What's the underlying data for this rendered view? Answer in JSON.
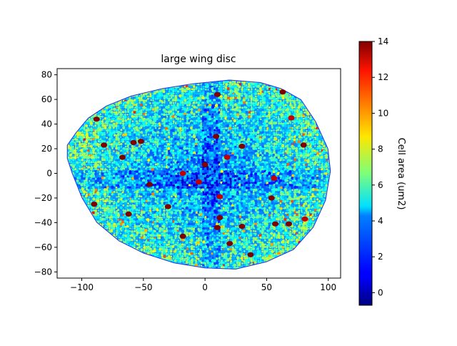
{
  "chart_data": {
    "type": "heatmap",
    "title": "large wing disc",
    "xlabel": "",
    "ylabel": "",
    "xlim": [
      -120,
      110
    ],
    "ylim": [
      -85,
      85
    ],
    "xticks": [
      -100,
      -50,
      0,
      50,
      100
    ],
    "yticks": [
      -80,
      -60,
      -40,
      -20,
      0,
      20,
      40,
      60,
      80
    ],
    "colorbar": {
      "label": "Cell area (um2)",
      "colormap": "jet",
      "range": [
        -0.7,
        14
      ],
      "ticks": [
        0,
        2,
        4,
        6,
        8,
        10,
        12,
        14
      ]
    },
    "grid": false,
    "tissue_outline": [
      [
        -112,
        23
      ],
      [
        -105,
        33
      ],
      [
        -95,
        45
      ],
      [
        -80,
        55
      ],
      [
        -60,
        63
      ],
      [
        -35,
        69
      ],
      [
        -10,
        73
      ],
      [
        20,
        76
      ],
      [
        45,
        74
      ],
      [
        62,
        69
      ],
      [
        78,
        60
      ],
      [
        90,
        42
      ],
      [
        100,
        20
      ],
      [
        102,
        2
      ],
      [
        98,
        -22
      ],
      [
        88,
        -44
      ],
      [
        72,
        -62
      ],
      [
        50,
        -72
      ],
      [
        25,
        -78
      ],
      [
        0,
        -77
      ],
      [
        -25,
        -73
      ],
      [
        -50,
        -65
      ],
      [
        -70,
        -55
      ],
      [
        -88,
        -40
      ],
      [
        -100,
        -20
      ],
      [
        -108,
        0
      ],
      [
        -112,
        12
      ]
    ],
    "large_cells": [
      {
        "x": -88,
        "y": 44,
        "area": 14
      },
      {
        "x": -82,
        "y": 23,
        "area": 14
      },
      {
        "x": -67,
        "y": 13,
        "area": 14
      },
      {
        "x": -58,
        "y": 25,
        "area": 14
      },
      {
        "x": -52,
        "y": 26,
        "area": 14
      },
      {
        "x": -90,
        "y": -25,
        "area": 14
      },
      {
        "x": -62,
        "y": -33,
        "area": 14
      },
      {
        "x": -45,
        "y": -9,
        "area": 14
      },
      {
        "x": -30,
        "y": -27,
        "area": 14
      },
      {
        "x": -18,
        "y": -51,
        "area": 14
      },
      {
        "x": -18,
        "y": 0,
        "area": 13
      },
      {
        "x": -5,
        "y": -7,
        "area": 13
      },
      {
        "x": 0,
        "y": 7,
        "area": 14
      },
      {
        "x": 9,
        "y": 30,
        "area": 14
      },
      {
        "x": 18,
        "y": 13,
        "area": 13
      },
      {
        "x": 10,
        "y": 64,
        "area": 14
      },
      {
        "x": 30,
        "y": 22,
        "area": 14
      },
      {
        "x": 12,
        "y": -19,
        "area": 13
      },
      {
        "x": 12,
        "y": -36,
        "area": 14
      },
      {
        "x": 10,
        "y": -44,
        "area": 14
      },
      {
        "x": 20,
        "y": -57,
        "area": 14
      },
      {
        "x": 30,
        "y": -43,
        "area": 14
      },
      {
        "x": 37,
        "y": -66,
        "area": 14
      },
      {
        "x": 54,
        "y": -20,
        "area": 14
      },
      {
        "x": 56,
        "y": -4,
        "area": 13
      },
      {
        "x": 57,
        "y": -41,
        "area": 14
      },
      {
        "x": 68,
        "y": -41,
        "area": 14
      },
      {
        "x": 81,
        "y": -37,
        "area": 13
      },
      {
        "x": 80,
        "y": 23,
        "area": 14
      },
      {
        "x": 63,
        "y": 66,
        "area": 14
      },
      {
        "x": 70,
        "y": 45,
        "area": 13
      }
    ]
  }
}
